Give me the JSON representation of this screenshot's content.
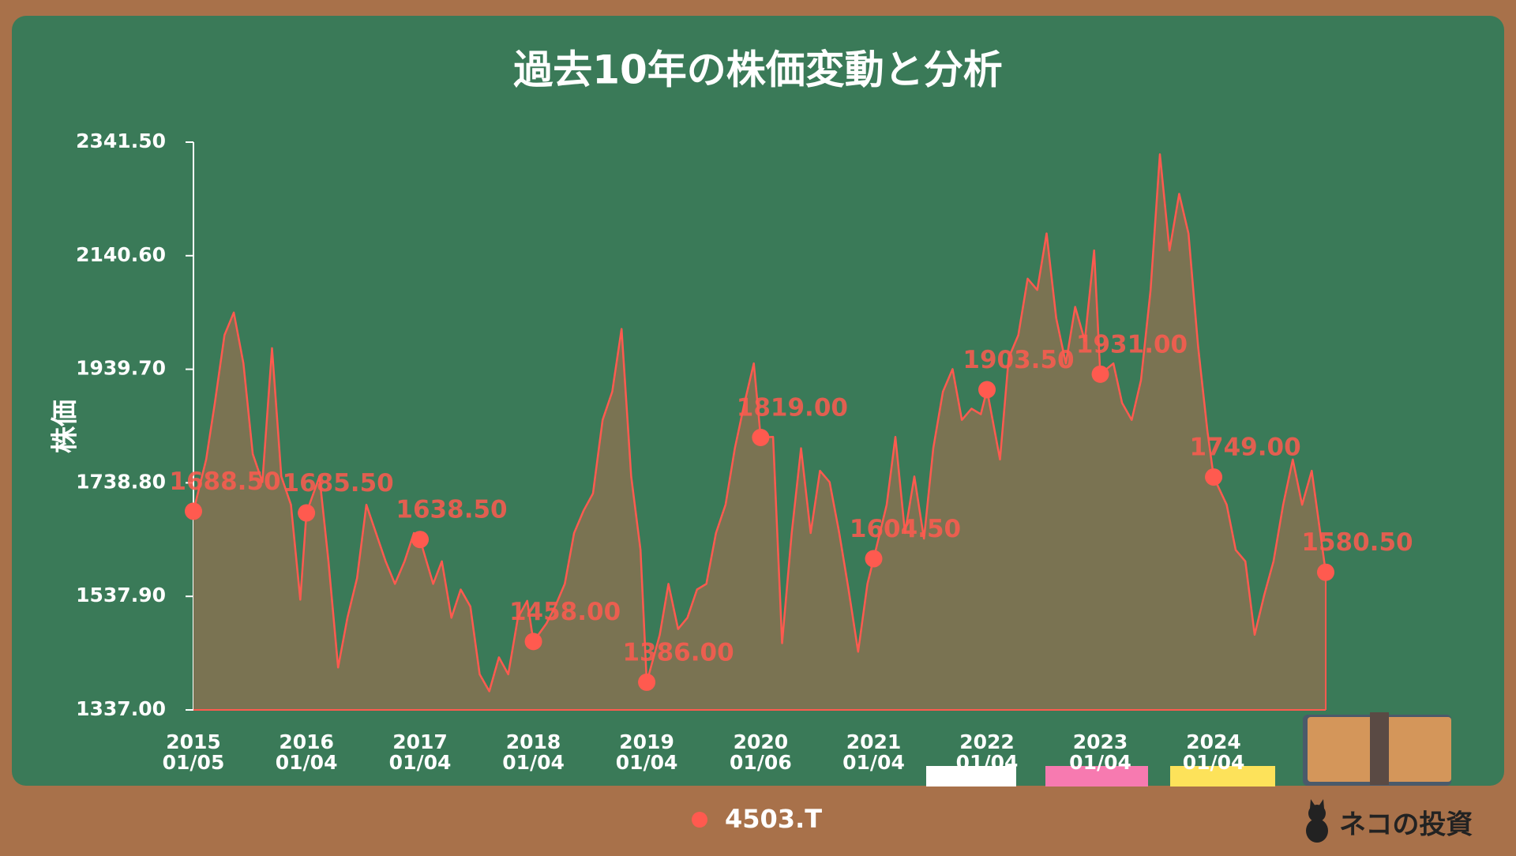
{
  "chart_data": {
    "type": "line",
    "title": "過去10年の株価変動と分析",
    "y_label": "株価",
    "x": [
      "2015-01-05",
      "2015-02-15",
      "2015-03-15",
      "2015-04-15",
      "2015-05-15",
      "2015-06-15",
      "2015-07-15",
      "2015-08-15",
      "2015-09-15",
      "2015-10-15",
      "2015-11-15",
      "2015-12-15",
      "2016-01-04",
      "2016-02-15",
      "2016-03-15",
      "2016-04-15",
      "2016-05-15",
      "2016-06-15",
      "2016-07-15",
      "2016-08-15",
      "2016-09-15",
      "2016-10-15",
      "2016-11-15",
      "2016-12-15",
      "2017-01-04",
      "2017-02-15",
      "2017-03-15",
      "2017-04-15",
      "2017-05-15",
      "2017-06-15",
      "2017-07-15",
      "2017-08-15",
      "2017-09-15",
      "2017-10-15",
      "2017-11-15",
      "2017-12-15",
      "2018-01-04",
      "2018-02-15",
      "2018-03-15",
      "2018-04-15",
      "2018-05-15",
      "2018-06-15",
      "2018-07-15",
      "2018-08-15",
      "2018-09-15",
      "2018-10-15",
      "2018-11-15",
      "2018-12-15",
      "2019-01-04",
      "2019-02-15",
      "2019-03-15",
      "2019-04-15",
      "2019-05-15",
      "2019-06-15",
      "2019-07-15",
      "2019-08-15",
      "2019-09-15",
      "2019-10-15",
      "2019-11-15",
      "2019-12-15",
      "2020-01-06",
      "2020-02-15",
      "2020-03-15",
      "2020-04-15",
      "2020-05-15",
      "2020-06-15",
      "2020-07-15",
      "2020-08-15",
      "2020-09-15",
      "2020-10-15",
      "2020-11-15",
      "2020-12-15",
      "2021-01-04",
      "2021-02-15",
      "2021-03-15",
      "2021-04-15",
      "2021-05-15",
      "2021-06-15",
      "2021-07-15",
      "2021-08-15",
      "2021-09-15",
      "2021-10-15",
      "2021-11-15",
      "2021-12-15",
      "2022-01-04",
      "2022-02-15",
      "2022-03-15",
      "2022-04-15",
      "2022-05-15",
      "2022-06-15",
      "2022-07-15",
      "2022-08-15",
      "2022-09-15",
      "2022-10-15",
      "2022-11-15",
      "2022-12-15",
      "2023-01-04",
      "2023-02-15",
      "2023-03-15",
      "2023-04-15",
      "2023-05-15",
      "2023-06-15",
      "2023-07-15",
      "2023-08-15",
      "2023-09-15",
      "2023-10-15",
      "2023-11-15",
      "2023-12-15",
      "2024-01-04",
      "2024-02-15",
      "2024-03-15",
      "2024-04-15",
      "2024-05-15",
      "2024-06-15",
      "2024-07-15",
      "2024-08-15",
      "2024-09-15",
      "2024-10-15",
      "2024-11-15",
      "2024-12-30"
    ],
    "series": [
      {
        "name": "4503.T",
        "color": "#ff5a4f",
        "values": [
          1688.5,
          1780,
          1880,
          2000,
          2040,
          1950,
          1790,
          1740,
          1977,
          1750,
          1700,
          1532,
          1685.5,
          1750,
          1600,
          1412,
          1500,
          1570,
          1700,
          1650,
          1600,
          1560,
          1600,
          1650,
          1638.5,
          1560,
          1600,
          1500,
          1550,
          1520,
          1400,
          1370,
          1430,
          1400,
          1500,
          1530,
          1458,
          1490,
          1520,
          1560,
          1650,
          1690,
          1720,
          1850,
          1900,
          2011,
          1750,
          1620,
          1386,
          1470,
          1560,
          1480,
          1500,
          1550,
          1560,
          1650,
          1700,
          1800,
          1880,
          1950,
          1819,
          1820,
          1455,
          1650,
          1800,
          1650,
          1760,
          1740,
          1650,
          1550,
          1440,
          1560,
          1604.5,
          1700,
          1820,
          1650,
          1750,
          1640,
          1800,
          1900,
          1940,
          1850,
          1870,
          1860,
          1903.5,
          1780,
          1960,
          2000,
          2100,
          2080,
          2180,
          2030,
          1950,
          2050,
          1990,
          2150,
          1931,
          1950,
          1880,
          1850,
          1920,
          2080,
          2320,
          2150,
          2250,
          2180,
          1980,
          1830,
          1749,
          1700,
          1620,
          1600,
          1470,
          1540,
          1600,
          1700,
          1780,
          1700,
          1760,
          1580.5
        ]
      }
    ],
    "annotations": {
      "x": [
        "2015-01-05",
        "2016-01-04",
        "2017-01-04",
        "2018-01-04",
        "2019-01-04",
        "2020-01-06",
        "2021-01-04",
        "2022-01-04",
        "2023-01-04",
        "2024-01-04",
        "2024-12-30"
      ],
      "values": [
        1688.5,
        1685.5,
        1638.5,
        1458,
        1386,
        1819,
        1604.5,
        1903.5,
        1931,
        1749,
        1580.5
      ],
      "value_labels": [
        "1688.50",
        "1685.50",
        "1638.50",
        "1458.00",
        "1386.00",
        "1819.00",
        "1604.50",
        "1903.50",
        "1931.00",
        "1749.00",
        "1580.50"
      ]
    },
    "xlim": [
      "2015-01-05",
      "2024-12-30"
    ],
    "xticks": [
      {
        "value": "2015-01-05",
        "label": [
          "2015",
          "01/05"
        ]
      },
      {
        "value": "2016-01-04",
        "label": [
          "2016",
          "01/04"
        ]
      },
      {
        "value": "2017-01-04",
        "label": [
          "2017",
          "01/04"
        ]
      },
      {
        "value": "2018-01-04",
        "label": [
          "2018",
          "01/04"
        ]
      },
      {
        "value": "2019-01-04",
        "label": [
          "2019",
          "01/04"
        ]
      },
      {
        "value": "2020-01-06",
        "label": [
          "2020",
          "01/06"
        ]
      },
      {
        "value": "2021-01-04",
        "label": [
          "2021",
          "01/04"
        ]
      },
      {
        "value": "2022-01-04",
        "label": [
          "2022",
          "01/04"
        ]
      },
      {
        "value": "2023-01-04",
        "label": [
          "2023",
          "01/04"
        ]
      },
      {
        "value": "2024-01-04",
        "label": [
          "2024",
          "01/04"
        ]
      }
    ],
    "ylim": [
      1337,
      2341.5
    ],
    "yticks": [
      {
        "value": 1337,
        "label": "1337.00"
      },
      {
        "value": 1537.9,
        "label": "1537.90"
      },
      {
        "value": 1738.8,
        "label": "1738.80"
      },
      {
        "value": 1939.7,
        "label": "1939.70"
      },
      {
        "value": 2140.6,
        "label": "2140.60"
      },
      {
        "value": 2341.5,
        "label": "2341.50"
      }
    ],
    "area_color": "#7a7352",
    "legend": "bottom"
  },
  "brand": "ネコの投資"
}
